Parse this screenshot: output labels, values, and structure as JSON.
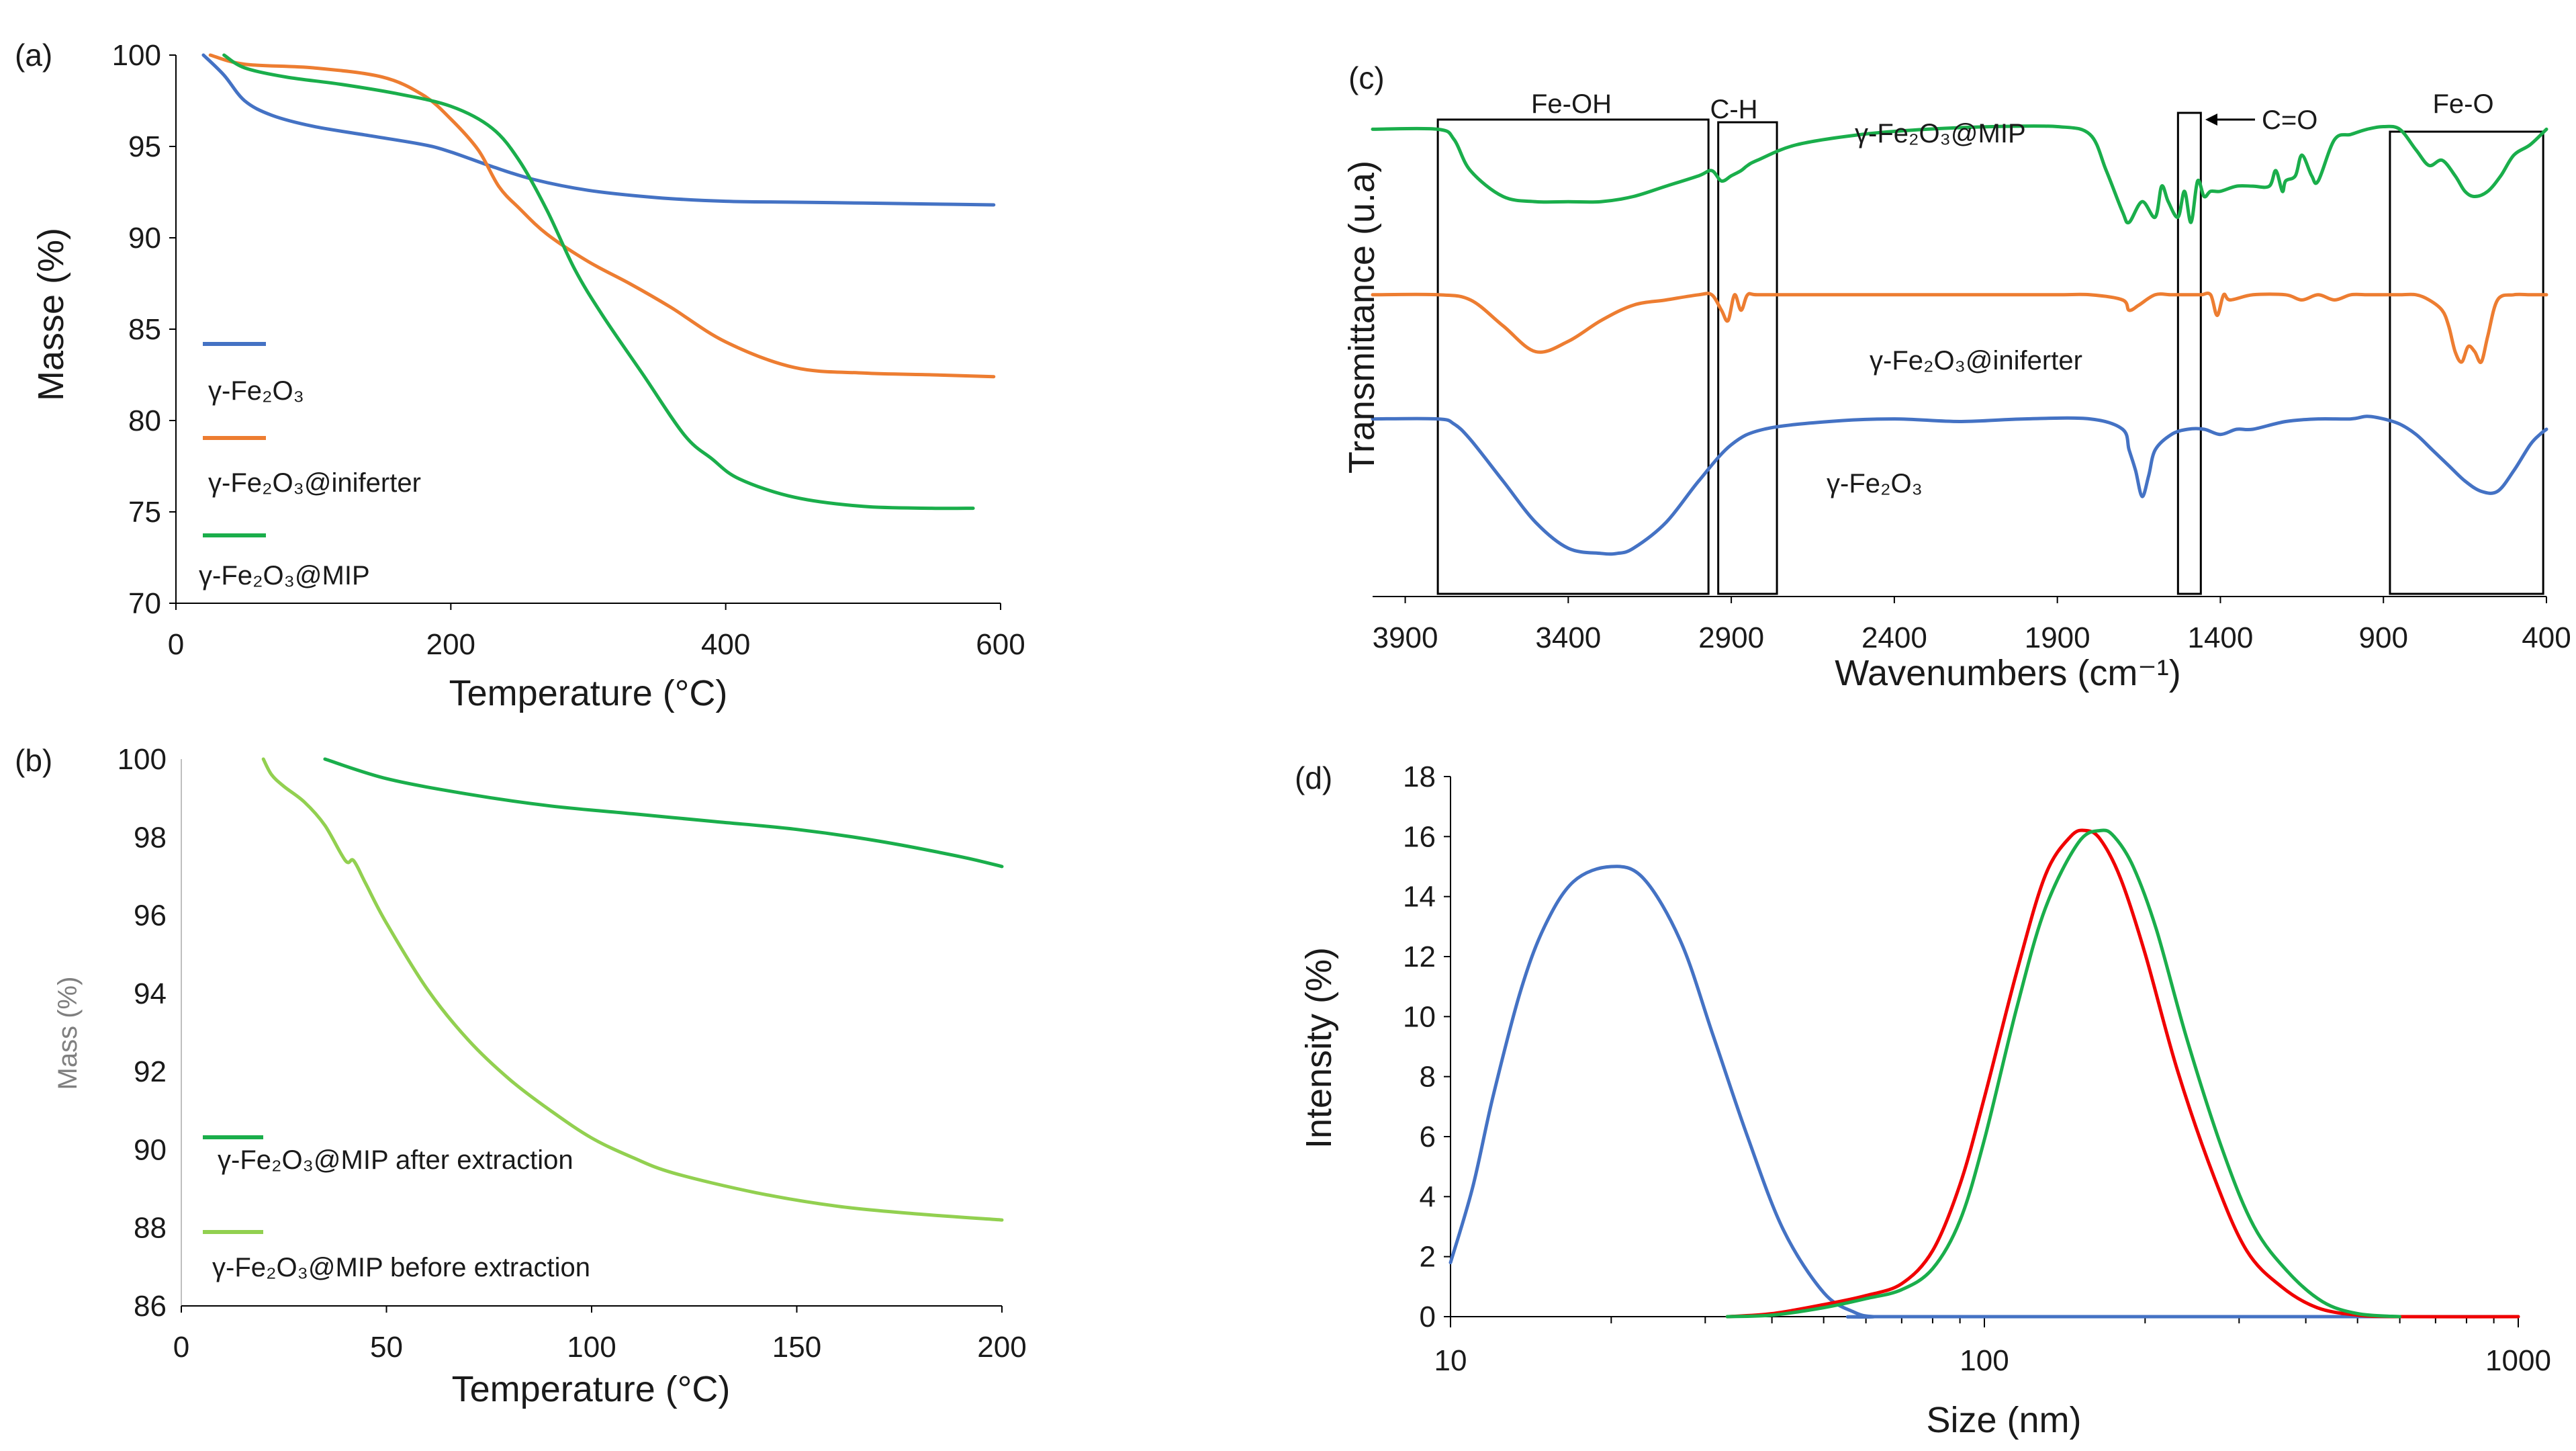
{
  "colors": {
    "blue": "#4472C4",
    "orange": "#ED7D31",
    "green": "#1AAE4B",
    "light_green": "#92D050",
    "red": "#F00000"
  },
  "chart_data": [
    {
      "panel": "(a)",
      "type": "line",
      "xlabel": "Temperature (°C)",
      "ylabel": "Masse (%)",
      "xlim": [
        0,
        600
      ],
      "ylim": [
        70,
        100
      ],
      "xticks": [
        "0",
        "200",
        "400",
        "600"
      ],
      "yticks": [
        "70",
        "75",
        "80",
        "85",
        "90",
        "95",
        "100"
      ],
      "legend_position": "left",
      "series": [
        {
          "name": "γ-Fe₂O₃",
          "color_key": "blue",
          "x": [
            20,
            35,
            50,
            70,
            100,
            140,
            180,
            200,
            230,
            260,
            300,
            350,
            400,
            450,
            500,
            550,
            595
          ],
          "y": [
            100,
            98.9,
            97.5,
            96.7,
            96.1,
            95.6,
            95.1,
            94.7,
            93.9,
            93.2,
            92.6,
            92.2,
            92.0,
            91.95,
            91.9,
            91.85,
            91.8
          ]
        },
        {
          "name": "γ-Fe₂O₃@iniferter",
          "color_key": "orange",
          "x": [
            25,
            50,
            100,
            150,
            180,
            200,
            220,
            235,
            250,
            270,
            300,
            330,
            360,
            400,
            450,
            500,
            550,
            595
          ],
          "y": [
            100,
            99.5,
            99.3,
            98.8,
            97.8,
            96.5,
            94.8,
            92.8,
            91.6,
            90.2,
            88.7,
            87.5,
            86.2,
            84.3,
            82.9,
            82.6,
            82.5,
            82.4
          ]
        },
        {
          "name": "γ-Fe₂O₃@MIP",
          "color_key": "green",
          "x": [
            35,
            50,
            80,
            120,
            160,
            200,
            230,
            250,
            270,
            290,
            310,
            340,
            370,
            390,
            410,
            450,
            500,
            550,
            580
          ],
          "y": [
            100,
            99.3,
            98.8,
            98.4,
            97.9,
            97.2,
            96.0,
            94.2,
            91.5,
            88.3,
            85.8,
            82.5,
            79.2,
            77.9,
            76.8,
            75.8,
            75.3,
            75.2,
            75.2
          ]
        }
      ]
    },
    {
      "panel": "(b)",
      "type": "line",
      "xlabel": "Temperature (°C)",
      "ylabel": "Mass (%)",
      "xlim": [
        0,
        200
      ],
      "ylim": [
        86,
        100
      ],
      "xticks": [
        "0",
        "50",
        "100",
        "150",
        "200"
      ],
      "yticks": [
        "86",
        "88",
        "90",
        "92",
        "94",
        "96",
        "98",
        "100"
      ],
      "legend_position": "left",
      "series": [
        {
          "name": "γ-Fe₂O₃@MIP after extraction",
          "color_key": "green",
          "x": [
            35,
            50,
            70,
            90,
            110,
            130,
            150,
            170,
            190,
            200
          ],
          "y": [
            100,
            99.5,
            99.1,
            98.8,
            98.6,
            98.4,
            98.2,
            97.9,
            97.5,
            97.25
          ]
        },
        {
          "name": "γ-Fe₂O₃@MIP before extraction",
          "color_key": "light_green",
          "x": [
            20,
            22,
            25,
            30,
            35,
            40,
            42,
            45,
            50,
            60,
            70,
            80,
            90,
            100,
            110,
            120,
            140,
            160,
            180,
            200
          ],
          "y": [
            100,
            99.6,
            99.3,
            98.9,
            98.3,
            97.4,
            97.4,
            96.8,
            95.8,
            94.1,
            92.8,
            91.8,
            91.0,
            90.3,
            89.8,
            89.4,
            88.9,
            88.55,
            88.35,
            88.2
          ]
        }
      ]
    },
    {
      "panel": "(c)",
      "type": "line",
      "xlabel": "Wavenumbers (cm⁻¹)",
      "ylabel": "Transmittance (u.a)",
      "xlim": [
        4000,
        400
      ],
      "xticks": [
        "3900",
        "3400",
        "2900",
        "2400",
        "1900",
        "1400",
        "900",
        "400"
      ],
      "xtick_values": [
        3900,
        3400,
        2900,
        2400,
        1900,
        1400,
        900,
        400
      ],
      "ylim": [
        0,
        100
      ],
      "annotations": [
        "Fe-OH",
        "C-H",
        "C=O",
        "Fe-O"
      ],
      "boxes": [
        {
          "label": "Fe-OH",
          "range": [
            3800,
            2970
          ]
        },
        {
          "label": "C-H",
          "range": [
            2940,
            2760
          ]
        },
        {
          "label": "C=O",
          "range": [
            1530,
            1460
          ]
        },
        {
          "label": "Fe-O",
          "range": [
            880,
            410
          ]
        }
      ],
      "series": [
        {
          "name": "γ-Fe₂O₃@MIP",
          "color_key": "green",
          "x": [
            4000,
            3800,
            3750,
            3700,
            3600,
            3500,
            3400,
            3300,
            3200,
            3100,
            3000,
            2960,
            2930,
            2900,
            2870,
            2850,
            2820,
            2700,
            2500,
            2300,
            2100,
            1900,
            1800,
            1750,
            1700,
            1680,
            1640,
            1600,
            1580,
            1560,
            1530,
            1510,
            1490,
            1470,
            1450,
            1430,
            1400,
            1350,
            1300,
            1250,
            1230,
            1210,
            1200,
            1170,
            1150,
            1120,
            1100,
            1050,
            1000,
            950,
            900,
            850,
            800,
            760,
            720,
            680,
            650,
            620,
            580,
            540,
            500,
            450,
            400
          ],
          "y": [
            88,
            88,
            86,
            80,
            75,
            74,
            74,
            74,
            75,
            77,
            79,
            80,
            78,
            79,
            80,
            81,
            82,
            85,
            87,
            88,
            88.5,
            88.5,
            87,
            80,
            72,
            70,
            74,
            71,
            77,
            74,
            71,
            76,
            70,
            78,
            75,
            76,
            76,
            77,
            77,
            77,
            80,
            76,
            78,
            79,
            83,
            79,
            78,
            86,
            87,
            88,
            88.5,
            88,
            84,
            81,
            82,
            79,
            76,
            75,
            76,
            79,
            83,
            85,
            88
          ]
        },
        {
          "name": "γ-Fe₂O₃@iniferter",
          "color_key": "orange",
          "x": [
            4000,
            3800,
            3700,
            3600,
            3500,
            3400,
            3300,
            3200,
            3100,
            3000,
            2960,
            2930,
            2910,
            2890,
            2870,
            2850,
            2820,
            2700,
            2500,
            2300,
            2100,
            1900,
            1800,
            1700,
            1680,
            1650,
            1600,
            1550,
            1500,
            1460,
            1430,
            1410,
            1390,
            1370,
            1300,
            1200,
            1150,
            1100,
            1050,
            1000,
            950,
            900,
            850,
            800,
            760,
            720,
            700,
            680,
            660,
            640,
            620,
            600,
            580,
            550,
            500,
            450,
            400
          ],
          "y": [
            56,
            56,
            55,
            50,
            45,
            47,
            51,
            54,
            55,
            56,
            56,
            53,
            51,
            56,
            53,
            56,
            56,
            56,
            56,
            56,
            56,
            56,
            56,
            55,
            53,
            54,
            56,
            56,
            56,
            56,
            56,
            52,
            56,
            55,
            56,
            56,
            55,
            56,
            55,
            56,
            56,
            56,
            56,
            56,
            55,
            53,
            50,
            45,
            43,
            46,
            45,
            43,
            48,
            55,
            56,
            56,
            56
          ]
        },
        {
          "name": "γ-Fe₂O₃",
          "color_key": "blue",
          "x": [
            4000,
            3800,
            3750,
            3700,
            3600,
            3500,
            3400,
            3300,
            3250,
            3200,
            3100,
            3000,
            2900,
            2800,
            2600,
            2400,
            2200,
            2000,
            1800,
            1700,
            1680,
            1660,
            1640,
            1620,
            1600,
            1550,
            1500,
            1450,
            1400,
            1350,
            1300,
            1200,
            1100,
            1000,
            950,
            900,
            850,
            800,
            750,
            700,
            650,
            600,
            550,
            500,
            450,
            420,
            400
          ],
          "y": [
            32,
            32,
            31,
            28,
            20,
            12,
            7,
            6,
            6,
            7,
            12,
            20,
            27,
            30,
            31.5,
            32,
            31.5,
            32,
            32,
            30,
            26,
            22,
            17,
            21,
            26,
            29,
            30,
            30,
            29,
            30,
            30,
            31.5,
            32,
            32,
            32.5,
            32,
            31,
            29,
            26,
            23,
            20,
            18,
            18,
            22,
            27,
            29,
            30
          ]
        }
      ]
    },
    {
      "panel": "(d)",
      "type": "line",
      "xscale": "log",
      "xlabel": "Size (nm)",
      "ylabel": "Intensity (%)",
      "xlim": [
        10,
        1000
      ],
      "ylim": [
        0,
        18
      ],
      "xticks": [
        "10",
        "100",
        "1000"
      ],
      "yticks": [
        "0",
        "2",
        "4",
        "6",
        "8",
        "10",
        "12",
        "14",
        "16",
        "18"
      ],
      "series": [
        {
          "name": "blue",
          "color_key": "blue",
          "x": [
            10,
            11,
            12,
            13.5,
            15,
            17,
            20,
            23,
            27,
            31,
            36,
            42,
            50,
            57,
            62,
            70,
            1000
          ],
          "y": [
            1.8,
            4.3,
            7.3,
            10.8,
            13.0,
            14.5,
            15.0,
            14.6,
            12.5,
            9.4,
            6.0,
            2.9,
            0.8,
            0.15,
            0,
            0,
            0
          ]
        },
        {
          "name": "red",
          "color_key": "red",
          "x": [
            33,
            40,
            50,
            60,
            70,
            80,
            90,
            100,
            115,
            130,
            145,
            155,
            165,
            180,
            200,
            230,
            270,
            310,
            360,
            420,
            500,
            600,
            1000
          ],
          "y": [
            0,
            0.1,
            0.4,
            0.7,
            1.1,
            2.2,
            4.4,
            7.3,
            11.5,
            14.7,
            16.0,
            16.2,
            15.9,
            14.6,
            12.1,
            8.2,
            4.6,
            2.2,
            1.0,
            0.3,
            0.05,
            0,
            0
          ]
        },
        {
          "name": "green",
          "color_key": "green",
          "x": [
            33,
            40,
            50,
            60,
            70,
            80,
            90,
            100,
            115,
            130,
            150,
            165,
            175,
            190,
            210,
            240,
            280,
            320,
            370,
            430,
            500,
            600
          ],
          "y": [
            0,
            0.05,
            0.3,
            0.6,
            0.9,
            1.6,
            3.2,
            5.9,
            10.3,
            13.6,
            15.8,
            16.2,
            16.0,
            15.0,
            12.9,
            9.2,
            5.5,
            3.0,
            1.5,
            0.5,
            0.1,
            0
          ]
        }
      ]
    }
  ]
}
